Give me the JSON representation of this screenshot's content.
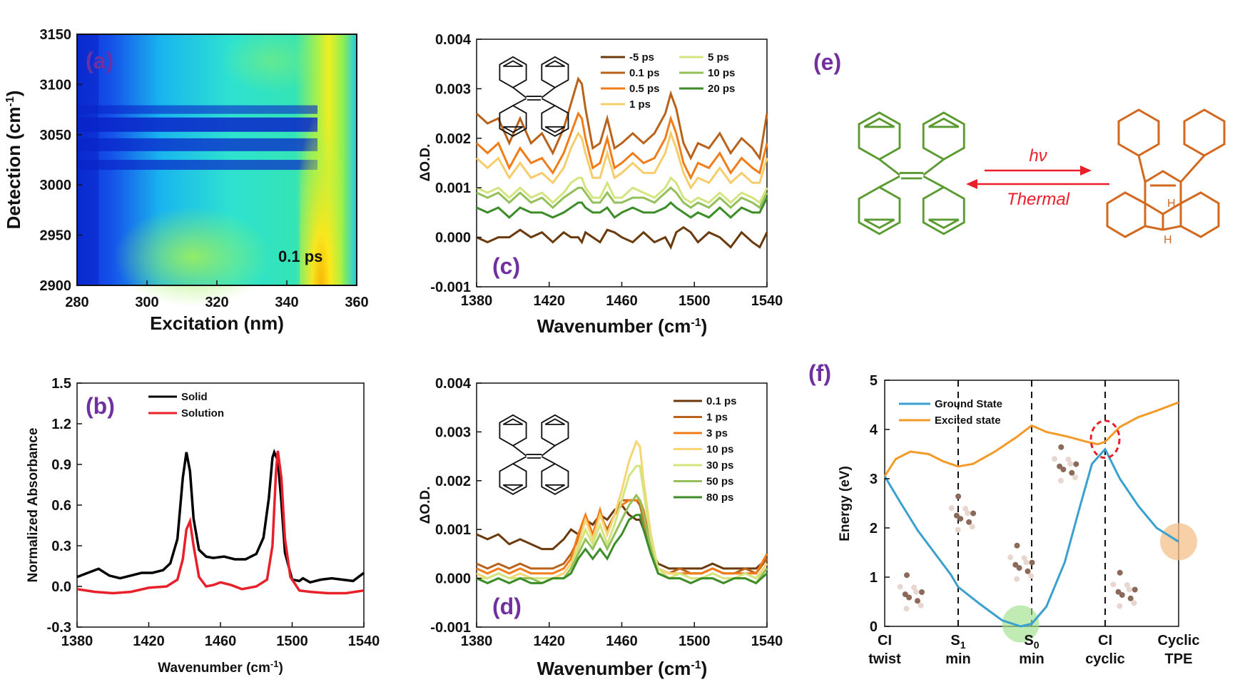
{
  "colors": {
    "panel_label": "#7030a0",
    "tpe_green": "#5a9a30",
    "cyclic_orange": "#d2691e",
    "arrow_red": "#e8202a",
    "ground_state": "#3aa0d0",
    "excited_state": "#f39a28"
  },
  "chart_data": [
    {
      "id": "a",
      "type": "heatmap",
      "panel_label": "(a)",
      "xlabel": "Excitation (nm)",
      "ylabel": "Detection (cm-1)",
      "xlim": [
        280,
        360
      ],
      "ylim": [
        2900,
        3150
      ],
      "xticks": [
        "280",
        "300",
        "320",
        "340",
        "360"
      ],
      "yticks": [
        "2900",
        "2950",
        "3000",
        "3050",
        "3100",
        "3150"
      ],
      "annotation": "0.1 ps",
      "colormap": [
        "#0b2fd6",
        "#1f6ff2",
        "#19b5ee",
        "#27e8c4",
        "#74f07a",
        "#dff227",
        "#ffb000"
      ],
      "peak_excitation_nm": 350,
      "absorption_bands_cm": [
        3020,
        3040,
        3060,
        3075
      ]
    },
    {
      "id": "b",
      "type": "line",
      "panel_label": "(b)",
      "xlabel": "Wavenumber (cm-1)",
      "ylabel": "Normalized Absorbance",
      "xlim": [
        1380,
        1540
      ],
      "ylim": [
        -0.3,
        1.5
      ],
      "xticks": [
        "1380",
        "1420",
        "1460",
        "1500",
        "1540"
      ],
      "yticks": [
        "-0.3",
        "0.0",
        "0.3",
        "0.6",
        "0.9",
        "1.2",
        "1.5"
      ],
      "series": [
        {
          "name": "Solid",
          "color": "#000000",
          "x": [
            1380,
            1386,
            1392,
            1398,
            1404,
            1410,
            1416,
            1422,
            1428,
            1432,
            1436,
            1439,
            1441,
            1443,
            1445,
            1448,
            1452,
            1456,
            1462,
            1468,
            1474,
            1480,
            1484,
            1487,
            1489,
            1490,
            1492,
            1494,
            1496,
            1500,
            1504,
            1506,
            1510,
            1516,
            1522,
            1528,
            1534,
            1540
          ],
          "y": [
            0.07,
            0.1,
            0.13,
            0.08,
            0.06,
            0.08,
            0.1,
            0.1,
            0.12,
            0.17,
            0.35,
            0.8,
            0.99,
            0.85,
            0.5,
            0.27,
            0.22,
            0.21,
            0.22,
            0.2,
            0.2,
            0.24,
            0.36,
            0.65,
            0.95,
            0.99,
            0.93,
            0.62,
            0.25,
            0.05,
            0.04,
            0.06,
            0.03,
            0.05,
            0.06,
            0.05,
            0.04,
            0.1
          ]
        },
        {
          "name": "Solution",
          "color": "#e8202a",
          "x": [
            1380,
            1390,
            1400,
            1410,
            1420,
            1430,
            1436,
            1439,
            1441,
            1443,
            1445,
            1448,
            1452,
            1456,
            1460,
            1466,
            1472,
            1480,
            1486,
            1489,
            1491,
            1492,
            1494,
            1496,
            1499,
            1504,
            1510,
            1520,
            1530,
            1540
          ],
          "y": [
            -0.02,
            -0.04,
            -0.05,
            -0.04,
            -0.01,
            0.0,
            0.05,
            0.2,
            0.42,
            0.48,
            0.3,
            0.07,
            0.0,
            0.01,
            0.03,
            0.01,
            -0.02,
            0.0,
            0.05,
            0.3,
            0.85,
            1.0,
            0.8,
            0.35,
            0.07,
            -0.03,
            -0.04,
            -0.05,
            -0.05,
            -0.03
          ]
        }
      ]
    },
    {
      "id": "c",
      "type": "line",
      "panel_label": "(c)",
      "xlabel": "Wavenumber (cm-1)",
      "ylabel": "ΔO.D.",
      "xlim": [
        1380,
        1540
      ],
      "ylim": [
        -0.001,
        0.004
      ],
      "xticks": [
        "1380",
        "1420",
        "1460",
        "1500",
        "1540"
      ],
      "yticks": [
        "-0.001",
        "0.000",
        "0.001",
        "0.002",
        "0.003",
        "0.004"
      ],
      "x": [
        1380,
        1386,
        1392,
        1398,
        1404,
        1410,
        1416,
        1422,
        1428,
        1432,
        1436,
        1438,
        1440,
        1444,
        1448,
        1452,
        1456,
        1460,
        1466,
        1472,
        1478,
        1484,
        1487,
        1490,
        1494,
        1498,
        1502,
        1508,
        1514,
        1520,
        1526,
        1532,
        1536,
        1540
      ],
      "series": [
        {
          "name": "-5 ps",
          "color": "#6b3a0c",
          "values": [
            0.0,
            -0.0001,
            0.0,
            0.0,
            0.00015,
            0.0,
            0.0001,
            -0.0001,
            0.0001,
            0.0,
            0.0,
            -0.0001,
            0.0001,
            0.0,
            -0.0001,
            0.00015,
            0.0001,
            0.0,
            -0.0001,
            0.0001,
            -0.0001,
            0.0,
            -0.0002,
            0.0001,
            0.0002,
            0.0001,
            -0.0001,
            0.0001,
            0.0,
            -0.0002,
            0.0001,
            -0.0001,
            -0.0002,
            0.0001
          ]
        },
        {
          "name": "0.1 ps",
          "color": "#b8621b",
          "values": [
            0.0025,
            0.0023,
            0.0024,
            0.0019,
            0.0024,
            0.0019,
            0.0021,
            0.0017,
            0.0022,
            0.0027,
            0.0032,
            0.0031,
            0.0026,
            0.0018,
            0.0019,
            0.0024,
            0.0018,
            0.0019,
            0.0021,
            0.0019,
            0.0021,
            0.0025,
            0.0029,
            0.0026,
            0.0019,
            0.0016,
            0.0019,
            0.0018,
            0.0021,
            0.0017,
            0.002,
            0.0018,
            0.0016,
            0.0025
          ]
        },
        {
          "name": "0.5 ps",
          "color": "#f07c1a",
          "values": [
            0.0019,
            0.0017,
            0.0019,
            0.0014,
            0.0018,
            0.0015,
            0.0016,
            0.0013,
            0.0017,
            0.0021,
            0.0025,
            0.0024,
            0.002,
            0.0014,
            0.0015,
            0.002,
            0.0014,
            0.0015,
            0.0017,
            0.0015,
            0.0016,
            0.002,
            0.0024,
            0.0021,
            0.0015,
            0.0012,
            0.0015,
            0.0014,
            0.0017,
            0.0013,
            0.0016,
            0.0014,
            0.0013,
            0.0019
          ]
        },
        {
          "name": "1 ps",
          "color": "#f7cd6b",
          "values": [
            0.0016,
            0.0014,
            0.0016,
            0.0012,
            0.0015,
            0.0012,
            0.0013,
            0.0011,
            0.0014,
            0.0018,
            0.0021,
            0.002,
            0.0017,
            0.0012,
            0.0012,
            0.0017,
            0.0012,
            0.0013,
            0.0015,
            0.0013,
            0.0013,
            0.0017,
            0.0021,
            0.0018,
            0.0013,
            0.001,
            0.0012,
            0.0011,
            0.0014,
            0.0011,
            0.0013,
            0.0011,
            0.0011,
            0.0016
          ]
        },
        {
          "name": "5 ps",
          "color": "#d2e57f",
          "values": [
            0.001,
            0.0009,
            0.001,
            0.0008,
            0.001,
            0.0008,
            0.0009,
            0.0007,
            0.0009,
            0.0011,
            0.0012,
            0.0012,
            0.001,
            0.0008,
            0.0008,
            0.0011,
            0.0008,
            0.0008,
            0.001,
            0.0009,
            0.0008,
            0.001,
            0.0012,
            0.0011,
            0.0008,
            0.0007,
            0.0008,
            0.0007,
            0.0009,
            0.0007,
            0.0009,
            0.0008,
            0.0007,
            0.001
          ]
        },
        {
          "name": "10 ps",
          "color": "#93c05a",
          "values": [
            0.0009,
            0.0008,
            0.0009,
            0.0007,
            0.0009,
            0.0007,
            0.0008,
            0.0006,
            0.0008,
            0.0009,
            0.001,
            0.001,
            0.0009,
            0.0007,
            0.0007,
            0.0009,
            0.0007,
            0.0007,
            0.0008,
            0.0008,
            0.0007,
            0.0009,
            0.001,
            0.0009,
            0.0007,
            0.0006,
            0.0007,
            0.0006,
            0.0008,
            0.0006,
            0.0008,
            0.0007,
            0.0006,
            0.0009
          ]
        },
        {
          "name": "20 ps",
          "color": "#3c8c28",
          "values": [
            0.0006,
            0.0005,
            0.0006,
            0.0004,
            0.0006,
            0.0005,
            0.0005,
            0.0004,
            0.0005,
            0.0006,
            0.0007,
            0.0007,
            0.0006,
            0.0005,
            0.0005,
            0.0006,
            0.0004,
            0.0005,
            0.0006,
            0.0005,
            0.0005,
            0.0006,
            0.0007,
            0.0006,
            0.0005,
            0.0004,
            0.0005,
            0.0004,
            0.0006,
            0.0004,
            0.0006,
            0.0005,
            0.0005,
            0.0008
          ]
        }
      ]
    },
    {
      "id": "d",
      "type": "line",
      "panel_label": "(d)",
      "xlabel": "Wavenumber (cm-1)",
      "ylabel": "ΔO.D.",
      "xlim": [
        1380,
        1540
      ],
      "ylim": [
        -0.001,
        0.004
      ],
      "xticks": [
        "1380",
        "1420",
        "1460",
        "1500",
        "1540"
      ],
      "yticks": [
        "-0.001",
        "0.000",
        "0.001",
        "0.002",
        "0.003",
        "0.004"
      ],
      "x": [
        1380,
        1386,
        1392,
        1398,
        1404,
        1410,
        1416,
        1422,
        1428,
        1432,
        1436,
        1440,
        1444,
        1448,
        1452,
        1456,
        1460,
        1464,
        1468,
        1470,
        1472,
        1476,
        1480,
        1486,
        1492,
        1498,
        1504,
        1510,
        1516,
        1522,
        1528,
        1534,
        1540
      ],
      "series": [
        {
          "name": "0.1 ps",
          "color": "#6b3a0c",
          "values": [
            0.0009,
            0.0008,
            0.0009,
            0.0007,
            0.0008,
            0.0007,
            0.0006,
            0.0006,
            0.0008,
            0.001,
            0.0009,
            0.0012,
            0.0011,
            0.0013,
            0.0012,
            0.0014,
            0.0015,
            0.0013,
            0.0012,
            0.0012,
            0.001,
            0.0006,
            0.0003,
            0.0002,
            0.0002,
            0.0002,
            0.0002,
            0.0003,
            0.0002,
            0.0002,
            0.0002,
            0.0002,
            0.0004
          ]
        },
        {
          "name": "1 ps",
          "color": "#b8621b",
          "values": [
            0.0003,
            0.0002,
            0.0003,
            0.0002,
            0.0003,
            0.0002,
            0.0002,
            0.0002,
            0.0003,
            0.0005,
            0.0008,
            0.0012,
            0.0009,
            0.0013,
            0.001,
            0.0013,
            0.0016,
            0.0016,
            0.0016,
            0.0015,
            0.0012,
            0.0006,
            0.0002,
            0.0001,
            0.0002,
            0.0001,
            0.0001,
            0.0002,
            0.0001,
            0.0001,
            0.0002,
            0.0001,
            0.0004
          ]
        },
        {
          "name": "3 ps",
          "color": "#f07c1a",
          "values": [
            0.0002,
            0.0001,
            0.0002,
            0.0001,
            0.0002,
            0.0001,
            0.0001,
            0.0001,
            0.0002,
            0.0004,
            0.0009,
            0.0013,
            0.0009,
            0.0014,
            0.0009,
            0.0013,
            0.0015,
            0.0016,
            0.0016,
            0.0016,
            0.0014,
            0.0007,
            0.0002,
            0.0001,
            0.0001,
            0.0001,
            0.0001,
            0.0002,
            0.0001,
            0.0001,
            0.0001,
            0.0001,
            0.0005
          ]
        },
        {
          "name": "10 ps",
          "color": "#f7d575",
          "values": [
            0.0001,
            0.0,
            0.0001,
            0.0,
            0.0001,
            0.0,
            0.0,
            0.0,
            0.0001,
            0.0003,
            0.0007,
            0.0012,
            0.0008,
            0.0013,
            0.0009,
            0.0013,
            0.0018,
            0.0024,
            0.0028,
            0.0027,
            0.002,
            0.0009,
            0.0002,
            0.0001,
            0.0001,
            0.0,
            0.0,
            0.0001,
            0.0,
            0.0,
            0.0001,
            0.0,
            0.0003
          ]
        },
        {
          "name": "30 ps",
          "color": "#d2e57f",
          "values": [
            0.0,
            0.0,
            0.0001,
            0.0,
            0.0,
            0.0,
            0.0,
            0.0,
            0.0,
            0.0002,
            0.0006,
            0.001,
            0.0007,
            0.0011,
            0.0007,
            0.0011,
            0.0016,
            0.0021,
            0.0023,
            0.0023,
            0.0018,
            0.0008,
            0.0002,
            0.0,
            0.0001,
            0.0,
            0.0,
            0.0001,
            0.0,
            0.0,
            0.0001,
            0.0,
            0.0002
          ]
        },
        {
          "name": "50 ps",
          "color": "#93c05a",
          "values": [
            0.0,
            -0.0001,
            0.0,
            -0.0001,
            0.0,
            0.0,
            -0.0001,
            0.0,
            0.0,
            0.0002,
            0.0005,
            0.0008,
            0.0006,
            0.0009,
            0.0006,
            0.0009,
            0.0012,
            0.0015,
            0.0017,
            0.0016,
            0.0013,
            0.0006,
            0.0001,
            0.0,
            0.0,
            -0.0001,
            0.0,
            0.0,
            -0.0001,
            0.0,
            0.0,
            -0.0001,
            0.0002
          ]
        },
        {
          "name": "80 ps",
          "color": "#3c8c28",
          "values": [
            0.0,
            -0.0001,
            0.0,
            -0.0001,
            0.0,
            -0.0001,
            -0.0001,
            0.0,
            0.0,
            0.0001,
            0.0004,
            0.0006,
            0.0004,
            0.0006,
            0.0004,
            0.0007,
            0.0009,
            0.0012,
            0.0013,
            0.0013,
            0.001,
            0.0005,
            0.0001,
            0.0,
            0.0,
            -0.0001,
            0.0,
            0.0,
            -0.0001,
            0.0,
            0.0,
            -0.0001,
            0.0001
          ]
        }
      ]
    },
    {
      "id": "f",
      "type": "line",
      "panel_label": "(f)",
      "xlabel": "",
      "ylabel": "Energy (eV)",
      "ylim": [
        0,
        5
      ],
      "yticks": [
        "0",
        "1",
        "2",
        "3",
        "4",
        "5"
      ],
      "xticks": [
        "CI twist",
        "S1 min",
        "S0 min",
        "CI cyclic",
        "Cyclic TPE"
      ],
      "series": [
        {
          "name": "Ground State",
          "color": "#3aa0d0",
          "x": [
            0,
            0.2,
            0.45,
            0.7,
            0.9,
            1.0,
            1.3,
            1.6,
            1.85,
            2.0,
            2.2,
            2.45,
            2.65,
            2.82,
            3.0,
            3.2,
            3.45,
            3.7,
            4.0
          ],
          "y": [
            3.05,
            2.55,
            1.95,
            1.45,
            1.05,
            0.8,
            0.45,
            0.12,
            0.0,
            0.05,
            0.4,
            1.3,
            2.4,
            3.3,
            3.6,
            3.0,
            2.45,
            2.0,
            1.72
          ]
        },
        {
          "name": "Excited state",
          "color": "#f39a28",
          "x": [
            0,
            0.15,
            0.35,
            0.6,
            0.8,
            1.0,
            1.2,
            1.5,
            1.8,
            2.0,
            2.2,
            2.5,
            2.75,
            2.9,
            3.0,
            3.2,
            3.45,
            3.7,
            4.0
          ],
          "y": [
            3.05,
            3.4,
            3.55,
            3.5,
            3.35,
            3.25,
            3.3,
            3.55,
            3.85,
            4.08,
            3.95,
            3.85,
            3.75,
            3.7,
            3.75,
            4.05,
            4.25,
            4.38,
            4.55
          ]
        }
      ]
    }
  ],
  "panel_e": {
    "label": "(e)",
    "forward": "hν",
    "reverse": "Thermal",
    "h_top": "H",
    "h_bottom": "H"
  },
  "legend_b": [
    "Solid",
    "Solution"
  ],
  "legend_c": [
    "-5 ps",
    "0.1 ps",
    "0.5 ps",
    "1 ps",
    "5 ps",
    "10 ps",
    "20 ps"
  ],
  "legend_d": [
    "0.1 ps",
    "1 ps",
    "3 ps",
    "10 ps",
    "30 ps",
    "50 ps",
    "80 ps"
  ],
  "legend_f": [
    "Ground State",
    "Excited state"
  ]
}
